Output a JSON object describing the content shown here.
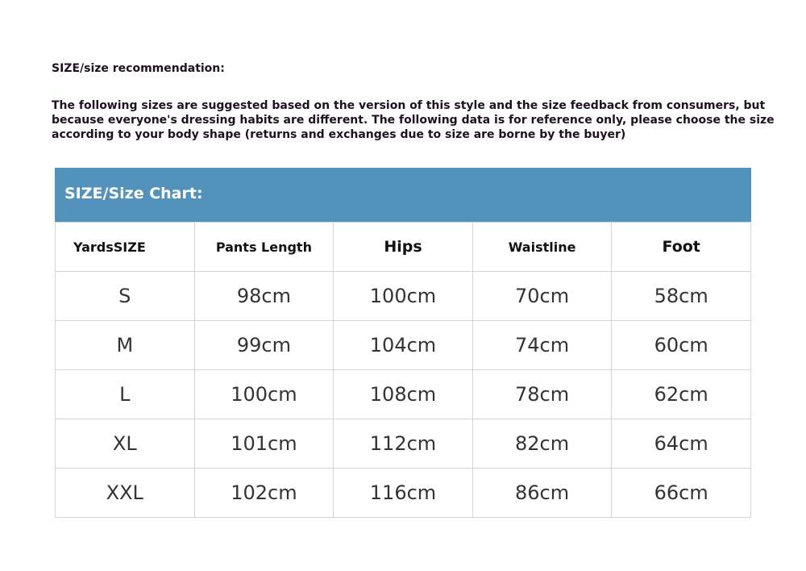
{
  "title": "SIZE/size recommendation:",
  "description": "The following sizes are suggested based on the version of this style and the size feedback from consumers, but because everyone's dressing habits are different. The following data is for reference only, please choose the size according to your body shape (returns and exchanges due to size are borne by the buyer)",
  "chart": {
    "heading": "SIZE/Size Chart:",
    "headerColor": "#5393bb",
    "columns": [
      "YardsSIZE",
      "Pants Length",
      "Hips",
      "Waistline",
      "Foot"
    ],
    "rows": [
      [
        "S",
        "98cm",
        "100cm",
        "70cm",
        "58cm"
      ],
      [
        "M",
        "99cm",
        "104cm",
        "74cm",
        "60cm"
      ],
      [
        "L",
        "100cm",
        "108cm",
        "78cm",
        "62cm"
      ],
      [
        "XL",
        "101cm",
        "112cm",
        "82cm",
        "64cm"
      ],
      [
        "XXL",
        "102cm",
        "116cm",
        "86cm",
        "66cm"
      ]
    ]
  }
}
